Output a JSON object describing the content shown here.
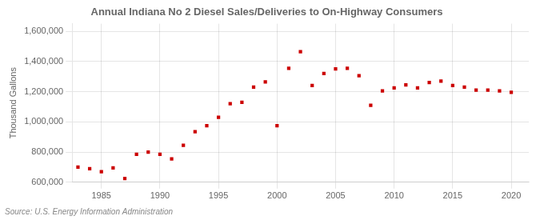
{
  "chart_data": {
    "type": "scatter",
    "title": "Annual Indiana No 2 Diesel Sales/Deliveries to On-Highway Consumers",
    "y_label": "Thousand Gallons",
    "annotations": [
      "Source: U.S. Energy Information Administration"
    ],
    "x": [
      1983,
      1984,
      1985,
      1986,
      1987,
      1988,
      1989,
      1990,
      1991,
      1992,
      1993,
      1994,
      1995,
      1996,
      1997,
      1998,
      1999,
      2000,
      2001,
      2002,
      2003,
      2004,
      2005,
      2006,
      2007,
      2008,
      2009,
      2010,
      2011,
      2012,
      2013,
      2014,
      2015,
      2016,
      2017,
      2018,
      2019,
      2020
    ],
    "values": [
      700000,
      690000,
      670000,
      695000,
      625000,
      785000,
      800000,
      785000,
      755000,
      845000,
      935000,
      975000,
      1030000,
      1120000,
      1130000,
      1230000,
      1265000,
      975000,
      1355000,
      1465000,
      1240000,
      1320000,
      1350000,
      1355000,
      1305000,
      1110000,
      1205000,
      1225000,
      1245000,
      1225000,
      1260000,
      1270000,
      1240000,
      1230000,
      1210000,
      1210000,
      1205000,
      1195000
    ],
    "color": "#cc0000",
    "marker": "square",
    "xlim": [
      1982.5,
      2021.5
    ],
    "xticks": [
      1985,
      1990,
      1995,
      2000,
      2005,
      2010,
      2015,
      2020
    ],
    "ylim": [
      600000,
      1650000
    ],
    "yticks": [
      {
        "value": 600000,
        "label": "600,000"
      },
      {
        "value": 800000,
        "label": "800,000"
      },
      {
        "value": 1000000,
        "label": "1,000,000"
      },
      {
        "value": 1200000,
        "label": "1,200,000"
      },
      {
        "value": 1400000,
        "label": "1,400,000"
      },
      {
        "value": 1600000,
        "label": "1,600,000"
      }
    ],
    "grid": true
  }
}
